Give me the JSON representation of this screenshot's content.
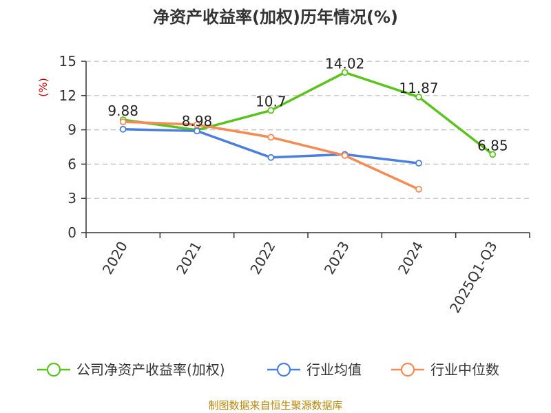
{
  "chart_data": {
    "type": "line",
    "title": "净资产收益率(加权)历年情况(%)",
    "ylabel": "(%)",
    "xlabel": "",
    "categories": [
      "2020",
      "2021",
      "2022",
      "2023",
      "2024",
      "2025Q1-Q3"
    ],
    "ylim": [
      0,
      15
    ],
    "yticks": [
      0,
      3,
      6,
      9,
      12,
      15
    ],
    "grid": true,
    "legend_position": "bottom",
    "series": [
      {
        "name": "公司净资产收益率(加权)",
        "color": "#5bc21e",
        "values": [
          9.88,
          8.98,
          10.7,
          14.02,
          11.87,
          6.85
        ],
        "labels": [
          "9.88",
          "8.98",
          "10.7",
          "14.02",
          "11.87",
          "6.85"
        ]
      },
      {
        "name": "行业均值",
        "color": "#4a7fdc",
        "values": [
          9.05,
          8.9,
          6.58,
          6.85,
          6.08,
          null
        ]
      },
      {
        "name": "行业中位数",
        "color": "#f58b54",
        "values": [
          9.7,
          9.45,
          8.35,
          6.75,
          3.8,
          null
        ]
      }
    ]
  },
  "footer": {
    "source": "制图数据来自恒生聚源数据库"
  }
}
